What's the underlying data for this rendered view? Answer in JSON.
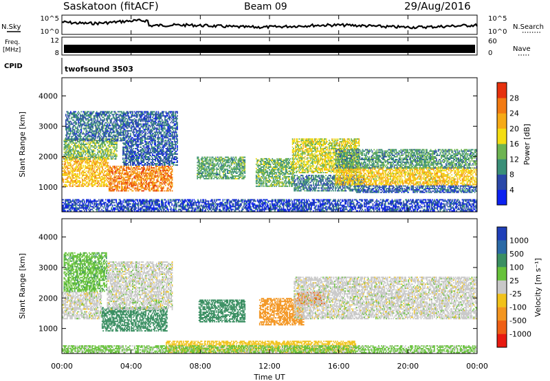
{
  "header": {
    "site": "Saskatoon (fitACF)",
    "beam": "Beam 09",
    "date": "29/Aug/2016"
  },
  "left_labels": {
    "nsky": "N.Sky",
    "freq_line1": "Freq.",
    "freq_line2": "[MHz]",
    "cpid": "CPID"
  },
  "right_labels": {
    "nsearch": "N.Search",
    "nave": "Nave"
  },
  "program": "twofsound 3503",
  "noise_ticks": [
    "10^5",
    "10^0"
  ],
  "freq_ticks": [
    "12",
    "8"
  ],
  "nave_ticks": [
    "60",
    "0"
  ],
  "x_ticks": [
    "00:00",
    "04:00",
    "08:00",
    "12:00",
    "16:00",
    "20:00",
    "00:00"
  ],
  "xlabel": "Time UT",
  "range_ylabel": "Slant Range [km]",
  "range_ticks": [
    "1000",
    "2000",
    "3000",
    "4000"
  ],
  "power_colorbar": {
    "label": "Power [dB]",
    "ticks": [
      "4",
      "8",
      "12",
      "16",
      "20",
      "24",
      "28"
    ],
    "colors": [
      "#0b21f0",
      "#2a48a8",
      "#3a8f78",
      "#6db451",
      "#f4dd12",
      "#f6aa16",
      "#f27a12",
      "#e6300d"
    ]
  },
  "velocity_colorbar": {
    "label": "Velocity [m s⁻¹]",
    "ticks": [
      "1000",
      "500",
      "100",
      "25",
      "-25",
      "-100",
      "-500",
      "-1000"
    ],
    "colors": [
      "#1f3fb8",
      "#2b6aa6",
      "#3a8f62",
      "#67c23a",
      "#c8c8c8",
      "#f1c21a",
      "#f39520",
      "#ef5f14",
      "#e81a10"
    ]
  },
  "chart_data": [
    {
      "type": "heatmap",
      "title": "Power",
      "xlabel": "Time UT",
      "ylabel": "Slant Range [km]",
      "xlim": [
        0,
        24
      ],
      "ylim": [
        180,
        4600
      ],
      "colorbar_range": [
        0,
        30
      ],
      "regions": [
        {
          "t0": 0.0,
          "t1": 2.7,
          "r0": 1000,
          "r1": 2000,
          "v": 21
        },
        {
          "t0": 2.7,
          "t1": 6.4,
          "r0": 850,
          "r1": 1700,
          "v": 25
        },
        {
          "t0": 0.1,
          "t1": 3.2,
          "r0": 1900,
          "r1": 2600,
          "v": 14
        },
        {
          "t0": 0.2,
          "t1": 3.6,
          "r0": 2500,
          "r1": 3500,
          "v": 8
        },
        {
          "t0": 3.5,
          "t1": 6.7,
          "r0": 1700,
          "r1": 3500,
          "v": 7
        },
        {
          "t0": 7.8,
          "t1": 10.6,
          "r0": 1250,
          "r1": 2000,
          "v": 12
        },
        {
          "t0": 11.2,
          "t1": 13.4,
          "r0": 1000,
          "r1": 1950,
          "v": 13
        },
        {
          "t0": 13.3,
          "t1": 17.2,
          "r0": 1450,
          "r1": 2600,
          "v": 17
        },
        {
          "t0": 13.4,
          "t1": 17.5,
          "r0": 850,
          "r1": 1400,
          "v": 9
        },
        {
          "t0": 15.8,
          "t1": 24.0,
          "r0": 1050,
          "r1": 1650,
          "v": 20
        },
        {
          "t0": 15.8,
          "t1": 24.0,
          "r0": 1600,
          "r1": 2250,
          "v": 11
        },
        {
          "t0": 17.0,
          "t1": 24.0,
          "r0": 800,
          "r1": 1050,
          "v": 7
        },
        {
          "t0": 0.0,
          "t1": 24.0,
          "r0": 190,
          "r1": 600,
          "v": 5
        }
      ]
    },
    {
      "type": "heatmap",
      "title": "Velocity",
      "xlabel": "Time UT",
      "ylabel": "Slant Range [km]",
      "xlim": [
        0,
        24
      ],
      "ylim": [
        180,
        4600
      ],
      "colorbar_range": [
        -1000,
        1000
      ],
      "regions": [
        {
          "t0": 0.0,
          "t1": 2.3,
          "r0": 1300,
          "r1": 2200,
          "v": 0
        },
        {
          "t0": 2.3,
          "t1": 6.1,
          "r0": 900,
          "r1": 1700,
          "v": 150
        },
        {
          "t0": 0.1,
          "t1": 2.6,
          "r0": 2200,
          "r1": 3500,
          "v": 80
        },
        {
          "t0": 2.6,
          "t1": 6.4,
          "r0": 1600,
          "r1": 3200,
          "v": 0
        },
        {
          "t0": 7.9,
          "t1": 10.6,
          "r0": 1200,
          "r1": 1950,
          "v": 300
        },
        {
          "t0": 11.4,
          "t1": 14.0,
          "r0": 1100,
          "r1": 2000,
          "v": -350
        },
        {
          "t0": 13.6,
          "t1": 15.2,
          "r0": 1750,
          "r1": 2200,
          "v": -700
        },
        {
          "t0": 13.4,
          "t1": 24.0,
          "r0": 1300,
          "r1": 2700,
          "v": 0
        },
        {
          "t0": 6.0,
          "t1": 17.0,
          "r0": 200,
          "r1": 600,
          "v": -60
        },
        {
          "t0": 0.0,
          "t1": 24.0,
          "r0": 190,
          "r1": 450,
          "v": 40
        }
      ]
    }
  ]
}
